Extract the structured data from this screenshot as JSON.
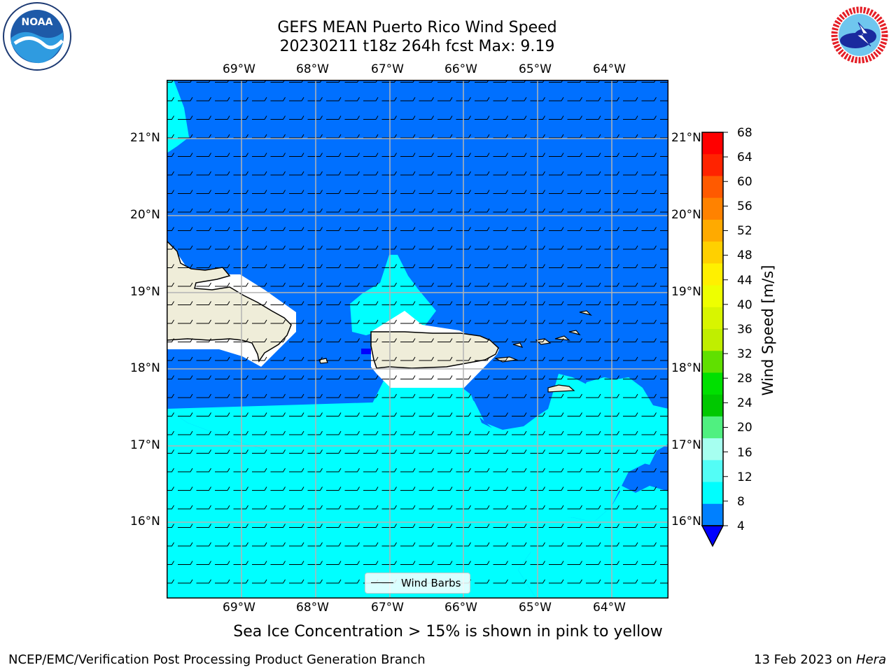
{
  "header": {
    "title_line1": "GEFS MEAN Puerto Rico Wind Speed",
    "title_line2": "20230211 t18z 264h fcst   Max: 9.19"
  },
  "logos": {
    "left": {
      "icon": "noaa-logo",
      "text": "NOAA",
      "ring_text": "NATIONAL OCEANIC AND ATMOSPHERIC ADMINISTRATION · U.S. DEPARTMENT OF COMMERCE"
    },
    "right": {
      "icon": "nws-logo",
      "ring_text": "NATIONAL WEATHER SERVICE"
    }
  },
  "map": {
    "lon_ticks": [
      "69°W",
      "68°W",
      "67°W",
      "66°W",
      "65°W",
      "64°W"
    ],
    "lat_ticks": [
      "21°N",
      "20°N",
      "19°N",
      "18°N",
      "17°N",
      "16°N"
    ],
    "legend_label": "Wind Barbs",
    "colors": {
      "ocean_dark": "#0070ff",
      "ocean_light": "#00ffff",
      "land": "#efedd9",
      "mask": "#ffffff",
      "coast": "#000000",
      "grid": "#b4b4b4"
    }
  },
  "colorbar": {
    "label": "Wind Speed [m/s]",
    "ticks": [
      "68",
      "64",
      "60",
      "56",
      "52",
      "48",
      "44",
      "40",
      "36",
      "32",
      "28",
      "24",
      "20",
      "16",
      "12",
      "8",
      "4"
    ],
    "colors": [
      "#ff0000",
      "#ff2300",
      "#ff5a00",
      "#ff8200",
      "#ffaa00",
      "#ffd000",
      "#fff000",
      "#eeff00",
      "#d8f500",
      "#c0ee00",
      "#60e000",
      "#00e000",
      "#00c800",
      "#50f080",
      "#a6fff0",
      "#53fdf6",
      "#00fefe",
      "#0080ff"
    ],
    "extend_color": "#0000ff"
  },
  "footer": {
    "subtitle": "Sea Ice Concentration > 15% is shown in pink to yellow",
    "left": "NCEP/EMC/Verification Post Processing Product Generation Branch",
    "right_date": "13 Feb 2023 on",
    "right_host": "Hera"
  }
}
